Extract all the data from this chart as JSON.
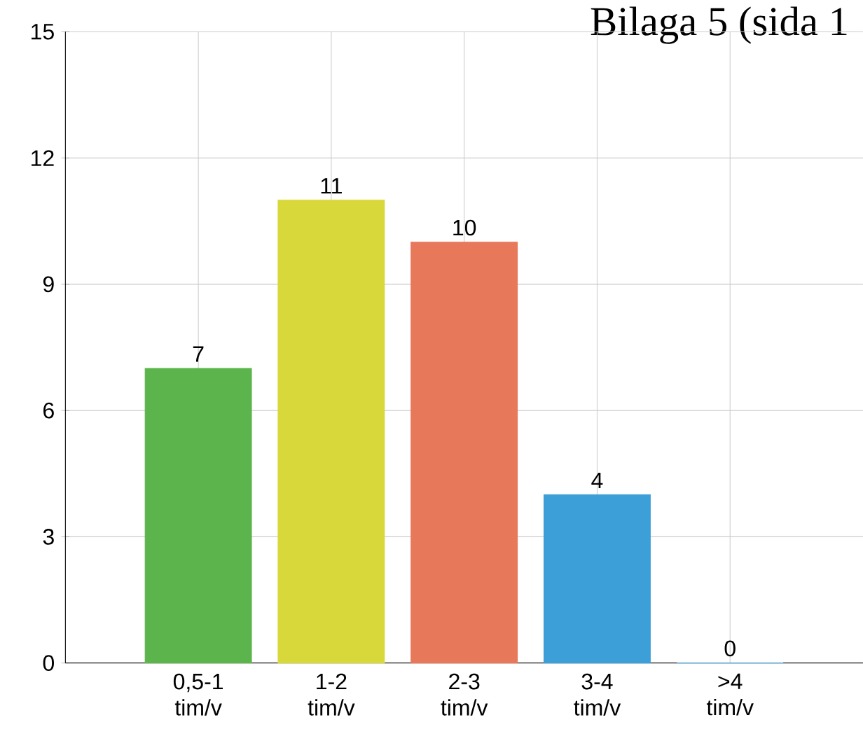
{
  "chart_data": {
    "type": "bar",
    "title": "Bilaga 5 (sida 1",
    "categories": [
      "0,5-1 tim/v",
      "1-2 tim/v",
      "2-3 tim/v",
      "3-4 tim/v",
      ">4 tim/v"
    ],
    "values": [
      7,
      11,
      10,
      4,
      0
    ],
    "colors": [
      "#5cb54c",
      "#d8d83a",
      "#e8785a",
      "#3d9fd8",
      "#3d9fd8"
    ],
    "ylim": [
      0,
      15
    ],
    "yticks": [
      0,
      3,
      6,
      9,
      12,
      15
    ],
    "grid": true,
    "data_labels": true
  }
}
